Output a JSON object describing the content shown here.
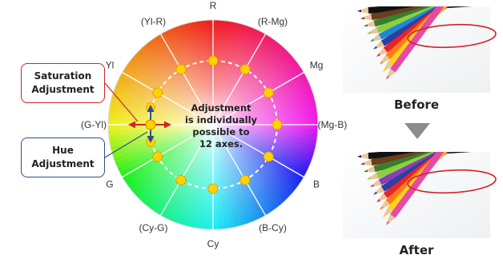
{
  "wheel": {
    "axes": [
      "R",
      "(R-Mg)",
      "Mg",
      "(Mg-B)",
      "B",
      "(B-Cy)",
      "Cy",
      "(Cy-G)",
      "G",
      "(G-Yl)",
      "Yl",
      "(Yl-R)"
    ],
    "center_text": [
      "Adjustment",
      "is individually",
      "possible to",
      "12 axes."
    ]
  },
  "callouts": {
    "saturation": [
      "Saturation",
      "Adjustment"
    ],
    "hue": [
      "Hue",
      "Adjustment"
    ]
  },
  "photos": {
    "before_label": "Before",
    "after_label": "After",
    "highlighted_pencil_before": "#1e88d6",
    "highlighted_pencil_after": "#8a3fb5"
  },
  "colors": {
    "highlight_ring": "#d2232a",
    "hue_accent": "#2a4d8f",
    "adjust_point": "#ffd200",
    "arrow_gray": "#8c8c8c"
  }
}
